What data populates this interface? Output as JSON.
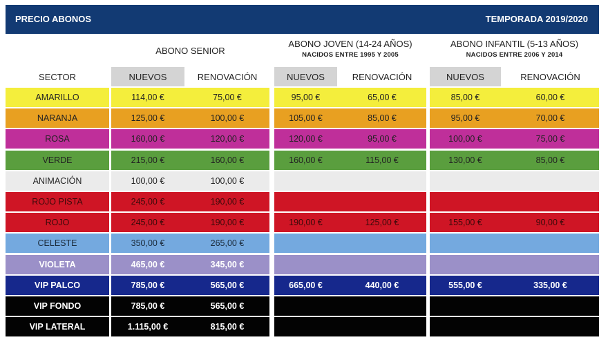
{
  "header": {
    "title": "PRECIO ABONOS",
    "season": "TEMPORADA 2019/2020",
    "bg": "#123a73"
  },
  "groups": [
    {
      "title": "ABONO SENIOR",
      "subtitle": ""
    },
    {
      "title": "ABONO JOVEN (14-24 AÑOS)",
      "subtitle": "NACIDOS ENTRE 1995 Y 2005"
    },
    {
      "title": "ABONO INFANTIL (5-13 AÑOS)",
      "subtitle": "NACIDOS ENTRE 2006 Y 2014"
    }
  ],
  "columns": {
    "sector": "SECTOR",
    "senior_nuevos": "NUEVOS",
    "senior_renovacion": "RENOVACIÓN",
    "joven_nuevos": "NUEVOS",
    "joven_renovacion": "RENOVACIÓN",
    "infantil_nuevos": "NUEVOS",
    "infantil_renovacion": "RENOVACIÓN"
  },
  "rows": [
    {
      "sector": "AMARILLO",
      "color": "#f4ee3c",
      "text": "#222222",
      "values": [
        "114,00 €",
        "75,00 €",
        "95,00 €",
        "65,00 €",
        "85,00 €",
        "60,00 €"
      ]
    },
    {
      "sector": "NARANJA",
      "color": "#e8a021",
      "text": "#222222",
      "values": [
        "125,00 €",
        "100,00 €",
        "105,00 €",
        "85,00 €",
        "95,00 €",
        "70,00 €"
      ]
    },
    {
      "sector": "ROSA",
      "color": "#bf2f9a",
      "text": "#222222",
      "values": [
        "160,00 €",
        "120,00 €",
        "120,00 €",
        "95,00 €",
        "100,00 €",
        "75,00 €"
      ]
    },
    {
      "sector": "VERDE",
      "color": "#5a9e3e",
      "text": "#222222",
      "values": [
        "215,00 €",
        "160,00 €",
        "160,00 €",
        "115,00 €",
        "130,00 €",
        "85,00 €"
      ]
    },
    {
      "sector": "ANIMACIÓN",
      "color": "#ebebeb",
      "text": "#222222",
      "values": [
        "100,00 €",
        "100,00 €",
        "",
        "",
        "",
        ""
      ]
    },
    {
      "sector": "ROJO PISTA",
      "color": "#cf1525",
      "text": "#3a0a0a",
      "values": [
        "245,00 €",
        "190,00 €",
        "",
        "",
        "",
        ""
      ]
    },
    {
      "sector": "ROJO",
      "color": "#cf1525",
      "text": "#3a0a0a",
      "values": [
        "245,00 €",
        "190,00 €",
        "190,00 €",
        "125,00 €",
        "155,00 €",
        "90,00 €"
      ]
    },
    {
      "sector": "CELESTE",
      "color": "#74a9df",
      "text": "#1a2a3a",
      "values": [
        "350,00 €",
        "265,00 €",
        "",
        "",
        "",
        ""
      ]
    },
    {
      "sector": "VIOLETA",
      "color": "#9b90c8",
      "text": "#ffffff",
      "values": [
        "465,00 €",
        "345,00 €",
        "",
        "",
        "",
        ""
      ]
    },
    {
      "sector": "VIP PALCO",
      "color": "#16288c",
      "text": "#ffffff",
      "values": [
        "785,00 €",
        "565,00 €",
        "665,00 €",
        "440,00 €",
        "555,00 €",
        "335,00 €"
      ]
    },
    {
      "sector": "VIP FONDO",
      "color": "#030303",
      "text": "#ffffff",
      "values": [
        "785,00 €",
        "565,00 €",
        "",
        "",
        "",
        ""
      ]
    },
    {
      "sector": "VIP LATERAL",
      "color": "#030303",
      "text": "#ffffff",
      "values": [
        "1.115,00 €",
        "815,00 €",
        "",
        "",
        "",
        ""
      ]
    }
  ]
}
